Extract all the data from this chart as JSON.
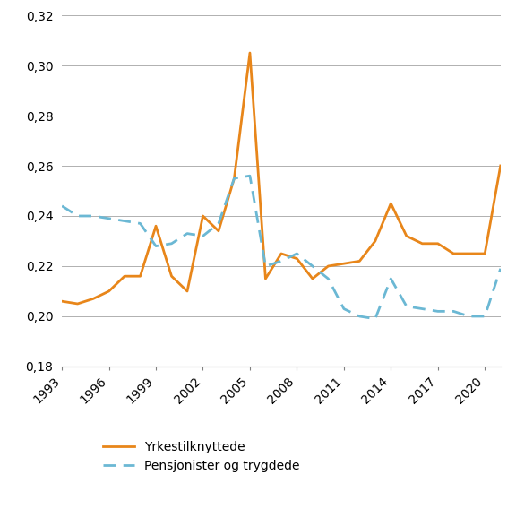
{
  "years": [
    1993,
    1994,
    1995,
    1996,
    1997,
    1998,
    1999,
    2000,
    2001,
    2002,
    2003,
    2004,
    2005,
    2006,
    2007,
    2008,
    2009,
    2010,
    2011,
    2012,
    2013,
    2014,
    2015,
    2016,
    2017,
    2018,
    2019,
    2020,
    2021
  ],
  "yrkestilknyttede": [
    0.206,
    0.205,
    0.207,
    0.21,
    0.216,
    0.216,
    0.236,
    0.216,
    0.21,
    0.24,
    0.234,
    0.255,
    0.305,
    0.215,
    0.225,
    0.223,
    0.215,
    0.22,
    0.221,
    0.222,
    0.23,
    0.245,
    0.232,
    0.229,
    0.229,
    0.225,
    0.225,
    0.225,
    0.26
  ],
  "pensjonister": [
    0.244,
    0.24,
    0.24,
    0.239,
    0.238,
    0.237,
    0.228,
    0.229,
    0.233,
    0.232,
    0.237,
    0.255,
    0.256,
    0.22,
    0.222,
    0.225,
    0.22,
    0.215,
    0.203,
    0.2,
    0.199,
    0.215,
    0.204,
    0.203,
    0.202,
    0.202,
    0.2,
    0.2,
    0.219
  ],
  "ylim": [
    0.18,
    0.32
  ],
  "yticks": [
    0.18,
    0.2,
    0.22,
    0.24,
    0.26,
    0.28,
    0.3,
    0.32
  ],
  "xticks": [
    1993,
    1996,
    1999,
    2002,
    2005,
    2008,
    2011,
    2014,
    2017,
    2020
  ],
  "line1_color": "#E8861A",
  "line2_color": "#6BB8D4",
  "line1_label": "Yrkestilknyttede",
  "line2_label": "Pensjonister og trygdede",
  "background_color": "#ffffff",
  "grid_color": "#b0b0b0"
}
